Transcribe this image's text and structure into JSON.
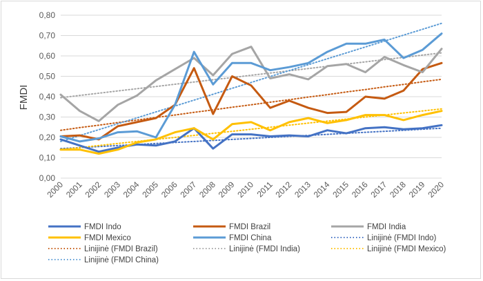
{
  "chart_data": {
    "type": "line",
    "title": "",
    "xlabel": "",
    "ylabel": "FMDI",
    "ylim": [
      0,
      0.8
    ],
    "yticks": [
      "0,00",
      "0,10",
      "0,20",
      "0,30",
      "0,40",
      "0,50",
      "0,60",
      "0,70",
      "0,80"
    ],
    "grid": true,
    "legend_position": "bottom",
    "categories": [
      "2000",
      "2001",
      "2002",
      "2003",
      "2004",
      "2005",
      "2006",
      "2007",
      "2008",
      "2009",
      "2010",
      "2011",
      "2012",
      "2013",
      "2014",
      "2015",
      "2016",
      "2017",
      "2018",
      "2019",
      "2020"
    ],
    "series": [
      {
        "name": "FMDI Indo",
        "color": "#4472C4",
        "style": "solid",
        "values": [
          0.19,
          0.16,
          0.13,
          0.15,
          0.165,
          0.16,
          0.18,
          0.245,
          0.145,
          0.215,
          0.215,
          0.205,
          0.21,
          0.205,
          0.235,
          0.22,
          0.245,
          0.25,
          0.24,
          0.245,
          0.26
        ]
      },
      {
        "name": "FMDI Brazil",
        "color": "#C55A11",
        "style": "solid",
        "values": [
          0.205,
          0.21,
          0.19,
          0.255,
          0.275,
          0.295,
          0.36,
          0.54,
          0.315,
          0.5,
          0.455,
          0.345,
          0.38,
          0.345,
          0.32,
          0.325,
          0.4,
          0.39,
          0.43,
          0.535,
          0.565
        ]
      },
      {
        "name": "FMDI India",
        "color": "#A5A5A5",
        "style": "solid",
        "values": [
          0.41,
          0.33,
          0.28,
          0.36,
          0.405,
          0.48,
          0.535,
          0.59,
          0.505,
          0.61,
          0.645,
          0.49,
          0.51,
          0.485,
          0.55,
          0.56,
          0.52,
          0.595,
          0.555,
          0.52,
          0.635
        ]
      },
      {
        "name": "FMDI Mexico",
        "color": "#FFC000",
        "style": "solid",
        "values": [
          0.14,
          0.14,
          0.12,
          0.14,
          0.175,
          0.19,
          0.225,
          0.245,
          0.19,
          0.265,
          0.275,
          0.235,
          0.275,
          0.295,
          0.27,
          0.285,
          0.31,
          0.31,
          0.285,
          0.31,
          0.33
        ]
      },
      {
        "name": "FMDI China",
        "color": "#5B9BD5",
        "style": "solid",
        "values": [
          0.205,
          0.18,
          0.195,
          0.225,
          0.23,
          0.2,
          0.36,
          0.62,
          0.46,
          0.565,
          0.565,
          0.53,
          0.545,
          0.565,
          0.62,
          0.66,
          0.66,
          0.68,
          0.59,
          0.63,
          0.71
        ]
      },
      {
        "name": "Linijinė (FMDI Indo)",
        "color": "#4472C4",
        "style": "dotted",
        "values": [
          0.145,
          0.15,
          0.155,
          0.16,
          0.165,
          0.17,
          0.175,
          0.18,
          0.185,
          0.19,
          0.195,
          0.2,
          0.205,
          0.21,
          0.215,
          0.22,
          0.225,
          0.23,
          0.235,
          0.24,
          0.245
        ]
      },
      {
        "name": "Linijinė (FMDI Brazil)",
        "color": "#C55A11",
        "style": "dotted",
        "values": [
          0.235,
          0.248,
          0.26,
          0.273,
          0.285,
          0.298,
          0.31,
          0.323,
          0.335,
          0.348,
          0.36,
          0.373,
          0.385,
          0.398,
          0.41,
          0.423,
          0.435,
          0.448,
          0.46,
          0.473,
          0.485
        ]
      },
      {
        "name": "Linijinė (FMDI India)",
        "color": "#A5A5A5",
        "style": "dotted",
        "values": [
          0.395,
          0.406,
          0.417,
          0.428,
          0.439,
          0.45,
          0.461,
          0.472,
          0.483,
          0.494,
          0.505,
          0.516,
          0.527,
          0.538,
          0.549,
          0.56,
          0.571,
          0.582,
          0.593,
          0.604,
          0.615
        ]
      },
      {
        "name": "Linijinė (FMDI Mexico)",
        "color": "#FFC000",
        "style": "dotted",
        "values": [
          0.14,
          0.15,
          0.16,
          0.17,
          0.18,
          0.19,
          0.2,
          0.21,
          0.22,
          0.23,
          0.24,
          0.25,
          0.26,
          0.27,
          0.28,
          0.29,
          0.3,
          0.31,
          0.32,
          0.33,
          0.34
        ]
      },
      {
        "name": "Linijinė (FMDI China)",
        "color": "#5B9BD5",
        "style": "dotted",
        "values": [
          0.18,
          0.209,
          0.238,
          0.267,
          0.296,
          0.325,
          0.354,
          0.383,
          0.412,
          0.441,
          0.47,
          0.499,
          0.528,
          0.557,
          0.586,
          0.615,
          0.644,
          0.673,
          0.702,
          0.731,
          0.76
        ]
      }
    ]
  }
}
